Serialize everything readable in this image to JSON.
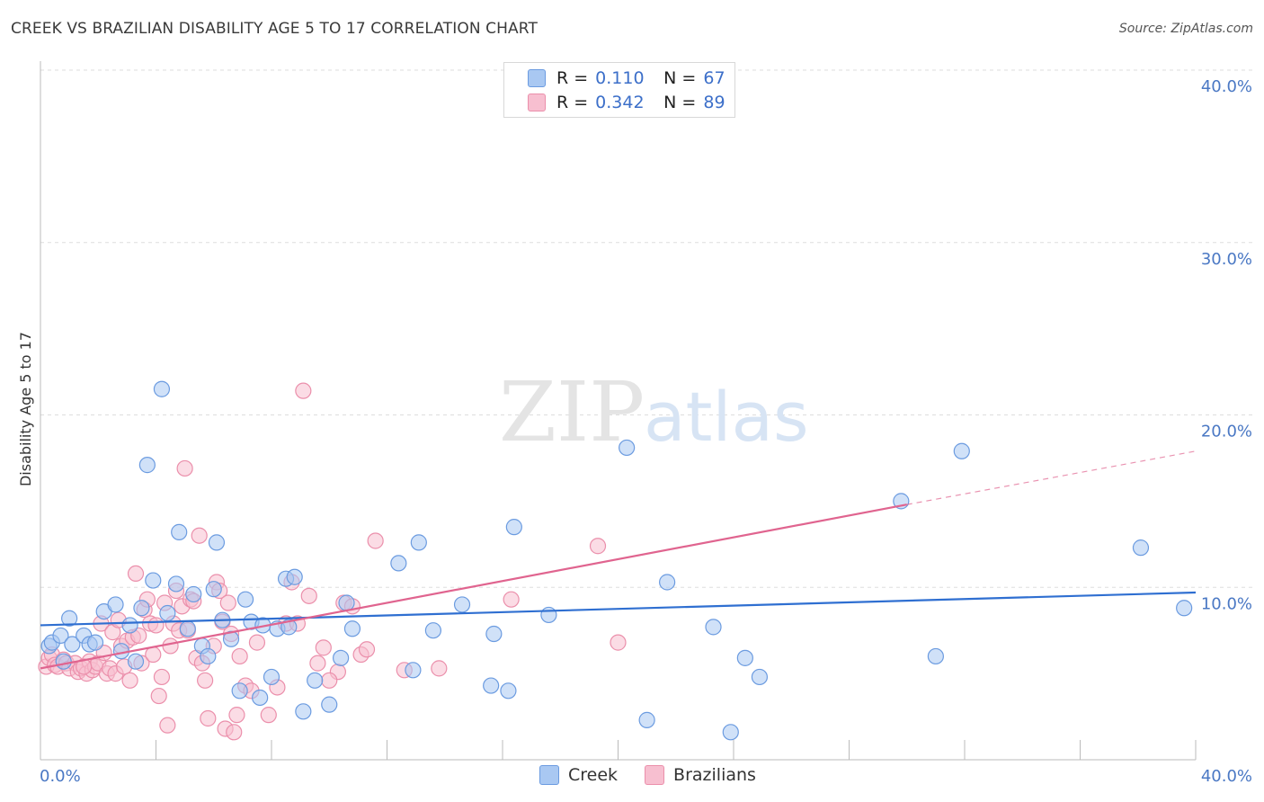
{
  "header": {
    "title": "CREEK VS BRAZILIAN DISABILITY AGE 5 TO 17 CORRELATION CHART",
    "source": "Source: ZipAtlas.com"
  },
  "watermark": {
    "zip": "ZIP",
    "atlas": "atlas"
  },
  "legend": {
    "rows": [
      {
        "r_label": "R =",
        "r_value": "0.110",
        "n_label": "N =",
        "n_value": "67"
      },
      {
        "r_label": "R =",
        "r_value": "0.342",
        "n_label": "N =",
        "n_value": "89"
      }
    ]
  },
  "bottom_legend": {
    "series_a": "Creek",
    "series_b": "Brazilians"
  },
  "colors": {
    "creek_fill": "#a9c8f2",
    "creek_stroke": "#6b9be0",
    "creek_line": "#2f6fd1",
    "braz_fill": "#f7bfd0",
    "braz_stroke": "#eb8fab",
    "braz_line": "#e0648f",
    "tick_text": "#4a78c4",
    "grid": "#dddddd"
  },
  "chart_data": {
    "type": "scatter",
    "ylabel": "Disability Age 5 to 17",
    "xlim": [
      0,
      40
    ],
    "ylim": [
      0,
      40
    ],
    "x_tick_labels": [
      {
        "value": 0,
        "label": "0.0%"
      },
      {
        "value": 40,
        "label": "40.0%"
      }
    ],
    "y_tick_labels": [
      {
        "value": 10,
        "label": "10.0%"
      },
      {
        "value": 20,
        "label": "20.0%"
      },
      {
        "value": 30,
        "label": "30.0%"
      },
      {
        "value": 40,
        "label": "40.0%"
      }
    ],
    "grid": "horizontal-dashed",
    "series": [
      {
        "name": "Creek",
        "trend": {
          "x0": 0,
          "y0": 7.8,
          "x1": 40,
          "y1": 9.7
        },
        "points": [
          [
            0.3,
            6.6
          ],
          [
            0.4,
            6.8
          ],
          [
            0.7,
            7.2
          ],
          [
            0.8,
            5.7
          ],
          [
            1.0,
            8.2
          ],
          [
            1.1,
            6.7
          ],
          [
            1.5,
            7.2
          ],
          [
            1.7,
            6.7
          ],
          [
            1.9,
            6.8
          ],
          [
            2.2,
            8.6
          ],
          [
            2.6,
            9.0
          ],
          [
            2.8,
            6.3
          ],
          [
            3.1,
            7.8
          ],
          [
            3.3,
            5.7
          ],
          [
            3.5,
            8.8
          ],
          [
            3.7,
            17.1
          ],
          [
            3.9,
            10.4
          ],
          [
            4.2,
            21.5
          ],
          [
            4.4,
            8.5
          ],
          [
            4.7,
            10.2
          ],
          [
            4.8,
            13.2
          ],
          [
            5.1,
            7.6
          ],
          [
            5.3,
            9.6
          ],
          [
            5.6,
            6.6
          ],
          [
            5.8,
            6.0
          ],
          [
            6.1,
            12.6
          ],
          [
            6.0,
            9.9
          ],
          [
            6.3,
            8.1
          ],
          [
            6.6,
            7.0
          ],
          [
            6.9,
            4.0
          ],
          [
            7.1,
            9.3
          ],
          [
            7.3,
            8.0
          ],
          [
            7.6,
            3.6
          ],
          [
            7.7,
            7.8
          ],
          [
            8.0,
            4.8
          ],
          [
            8.2,
            7.6
          ],
          [
            8.5,
            10.5
          ],
          [
            8.8,
            10.6
          ],
          [
            8.6,
            7.7
          ],
          [
            9.1,
            2.8
          ],
          [
            9.5,
            4.6
          ],
          [
            10.0,
            3.2
          ],
          [
            10.4,
            5.9
          ],
          [
            10.6,
            9.1
          ],
          [
            10.8,
            7.6
          ],
          [
            12.4,
            11.4
          ],
          [
            12.9,
            5.2
          ],
          [
            13.1,
            12.6
          ],
          [
            13.6,
            7.5
          ],
          [
            14.6,
            9.0
          ],
          [
            15.6,
            4.3
          ],
          [
            15.7,
            7.3
          ],
          [
            16.2,
            4.0
          ],
          [
            16.4,
            13.5
          ],
          [
            17.6,
            8.4
          ],
          [
            20.3,
            18.1
          ],
          [
            21.0,
            2.3
          ],
          [
            21.7,
            10.3
          ],
          [
            23.3,
            7.7
          ],
          [
            23.9,
            1.6
          ],
          [
            24.4,
            5.9
          ],
          [
            24.9,
            4.8
          ],
          [
            29.8,
            15.0
          ],
          [
            31.0,
            6.0
          ],
          [
            31.9,
            17.9
          ],
          [
            38.1,
            12.3
          ],
          [
            39.6,
            8.8
          ]
        ]
      },
      {
        "name": "Brazilians",
        "trend": {
          "x0": 0,
          "y0": 5.3,
          "x1": 30,
          "y1": 14.8,
          "dash_to_x": 40,
          "dash_to_y": 17.9
        },
        "points": [
          [
            0.2,
            5.4
          ],
          [
            0.3,
            5.9
          ],
          [
            0.4,
            6.1
          ],
          [
            0.5,
            5.5
          ],
          [
            0.6,
            5.4
          ],
          [
            0.8,
            5.8
          ],
          [
            0.9,
            5.6
          ],
          [
            1.0,
            5.3
          ],
          [
            1.2,
            5.6
          ],
          [
            1.3,
            5.1
          ],
          [
            1.4,
            5.3
          ],
          [
            1.6,
            5.0
          ],
          [
            1.7,
            5.7
          ],
          [
            1.8,
            5.2
          ],
          [
            1.9,
            5.4
          ],
          [
            2.0,
            5.6
          ],
          [
            2.1,
            7.9
          ],
          [
            2.2,
            6.2
          ],
          [
            2.3,
            5.0
          ],
          [
            2.4,
            5.3
          ],
          [
            2.5,
            7.4
          ],
          [
            2.6,
            5.0
          ],
          [
            2.7,
            8.1
          ],
          [
            2.8,
            6.6
          ],
          [
            2.9,
            5.4
          ],
          [
            3.0,
            6.9
          ],
          [
            3.1,
            4.6
          ],
          [
            3.2,
            7.1
          ],
          [
            3.3,
            10.8
          ],
          [
            3.4,
            7.2
          ],
          [
            3.5,
            5.6
          ],
          [
            3.6,
            8.7
          ],
          [
            3.7,
            9.3
          ],
          [
            3.8,
            7.9
          ],
          [
            3.9,
            6.1
          ],
          [
            4.0,
            7.8
          ],
          [
            4.1,
            3.7
          ],
          [
            4.2,
            4.8
          ],
          [
            4.3,
            9.1
          ],
          [
            4.4,
            2.0
          ],
          [
            4.5,
            6.6
          ],
          [
            4.6,
            7.9
          ],
          [
            4.7,
            9.8
          ],
          [
            4.8,
            7.5
          ],
          [
            4.9,
            8.9
          ],
          [
            5.0,
            16.9
          ],
          [
            5.1,
            7.5
          ],
          [
            5.2,
            9.3
          ],
          [
            5.3,
            9.2
          ],
          [
            5.4,
            5.9
          ],
          [
            5.5,
            13.0
          ],
          [
            5.6,
            5.6
          ],
          [
            5.7,
            4.6
          ],
          [
            5.8,
            2.4
          ],
          [
            6.0,
            6.6
          ],
          [
            6.1,
            10.3
          ],
          [
            6.2,
            9.8
          ],
          [
            6.3,
            8.0
          ],
          [
            6.4,
            1.8
          ],
          [
            6.5,
            9.1
          ],
          [
            6.6,
            7.3
          ],
          [
            6.7,
            1.6
          ],
          [
            6.8,
            2.6
          ],
          [
            6.9,
            6.0
          ],
          [
            7.1,
            4.3
          ],
          [
            7.3,
            4.0
          ],
          [
            7.5,
            6.8
          ],
          [
            7.9,
            2.6
          ],
          [
            8.2,
            4.2
          ],
          [
            8.5,
            7.9
          ],
          [
            8.7,
            10.3
          ],
          [
            8.9,
            7.9
          ],
          [
            9.1,
            21.4
          ],
          [
            9.3,
            9.5
          ],
          [
            9.6,
            5.6
          ],
          [
            9.8,
            6.5
          ],
          [
            10.3,
            5.1
          ],
          [
            10.5,
            9.1
          ],
          [
            10.8,
            8.9
          ],
          [
            11.1,
            6.1
          ],
          [
            11.3,
            6.4
          ],
          [
            11.6,
            12.7
          ],
          [
            12.6,
            5.2
          ],
          [
            13.8,
            5.3
          ],
          [
            16.3,
            9.3
          ],
          [
            19.3,
            12.4
          ],
          [
            20.0,
            6.8
          ],
          [
            10.0,
            4.6
          ],
          [
            1.5,
            5.4
          ]
        ]
      }
    ]
  }
}
